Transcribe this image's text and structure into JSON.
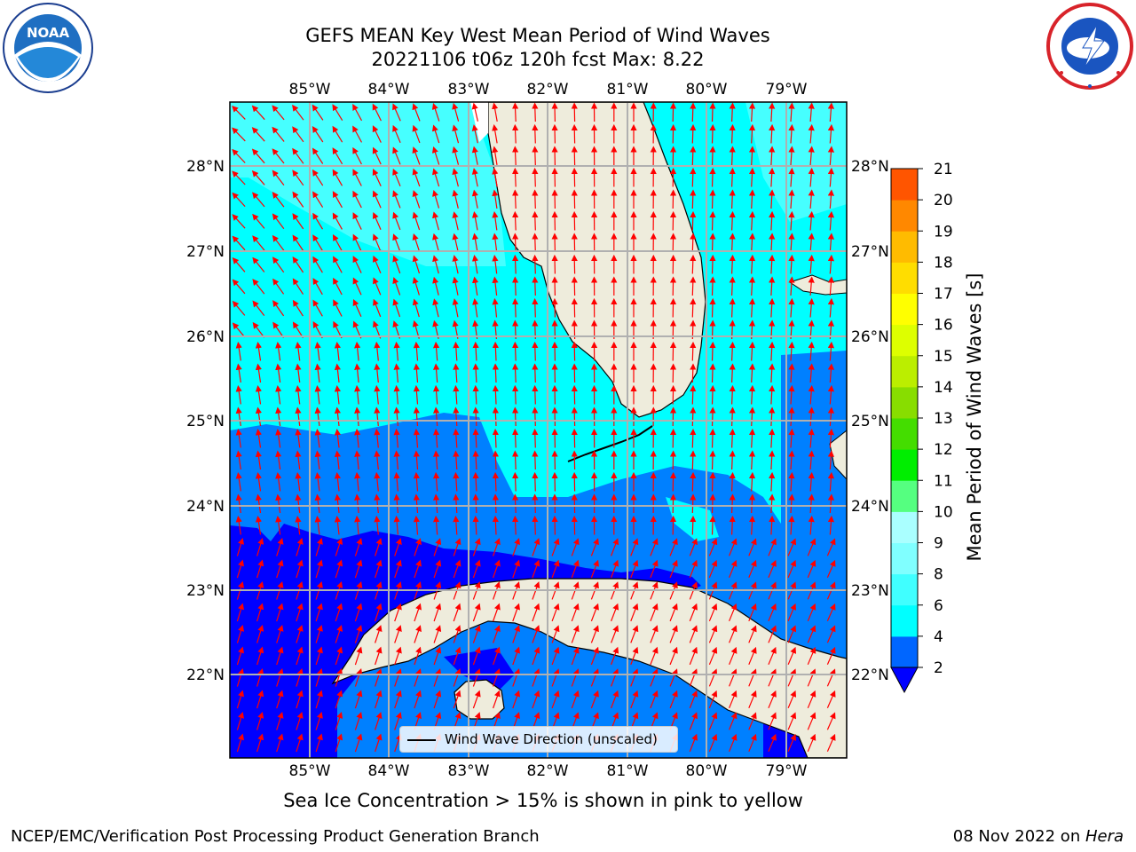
{
  "header": {
    "title_line1": "GEFS MEAN Key West Mean Period of Wind Waves",
    "title_line2": "20221106 t06z 120h fcst   Max: 8.22"
  },
  "logos": {
    "left": "NOAA",
    "right_text": "NATIONAL WEATHER SERVICE"
  },
  "map": {
    "lon_labels": [
      "85°W",
      "84°W",
      "83°W",
      "82°W",
      "81°W",
      "80°W",
      "79°W"
    ],
    "lat_labels": [
      "28°N",
      "27°N",
      "26°N",
      "25°N",
      "24°N",
      "23°N",
      "22°N"
    ],
    "legend_label": "Wind Wave Direction (unscaled)",
    "arrow_color": "#ff0000",
    "land_color": "#eeecdc",
    "ocean_palette": {
      "cyan": "#00ffff",
      "light_cyan": "#80ffff",
      "blue": "#0080ff",
      "dark_blue": "#0000ff"
    },
    "wind_wave_direction": "mostly northward (toward N/NNW)"
  },
  "colorbar": {
    "label": "Mean Period of Wind Waves [s]",
    "ticks": [
      "2",
      "4",
      "6",
      "8",
      "9",
      "10",
      "11",
      "12",
      "13",
      "14",
      "15",
      "16",
      "17",
      "18",
      "19",
      "20",
      "21"
    ],
    "colors": [
      "#0066ff",
      "#00ffff",
      "#40ffff",
      "#80ffff",
      "#aaffff",
      "#55ff80",
      "#00ee00",
      "#44dd00",
      "#88dd00",
      "#bbee00",
      "#ddff00",
      "#ffff00",
      "#ffdd00",
      "#ffbb00",
      "#ff8800",
      "#ff5500",
      "#ff2200",
      "#ff0000"
    ]
  },
  "notes": {
    "sea_ice": "Sea Ice Concentration > 15% is shown in pink to yellow",
    "footer_left": "NCEP/EMC/Verification Post Processing Product Generation Branch",
    "footer_date": "08 Nov 2022 on ",
    "footer_host": "Hera"
  }
}
